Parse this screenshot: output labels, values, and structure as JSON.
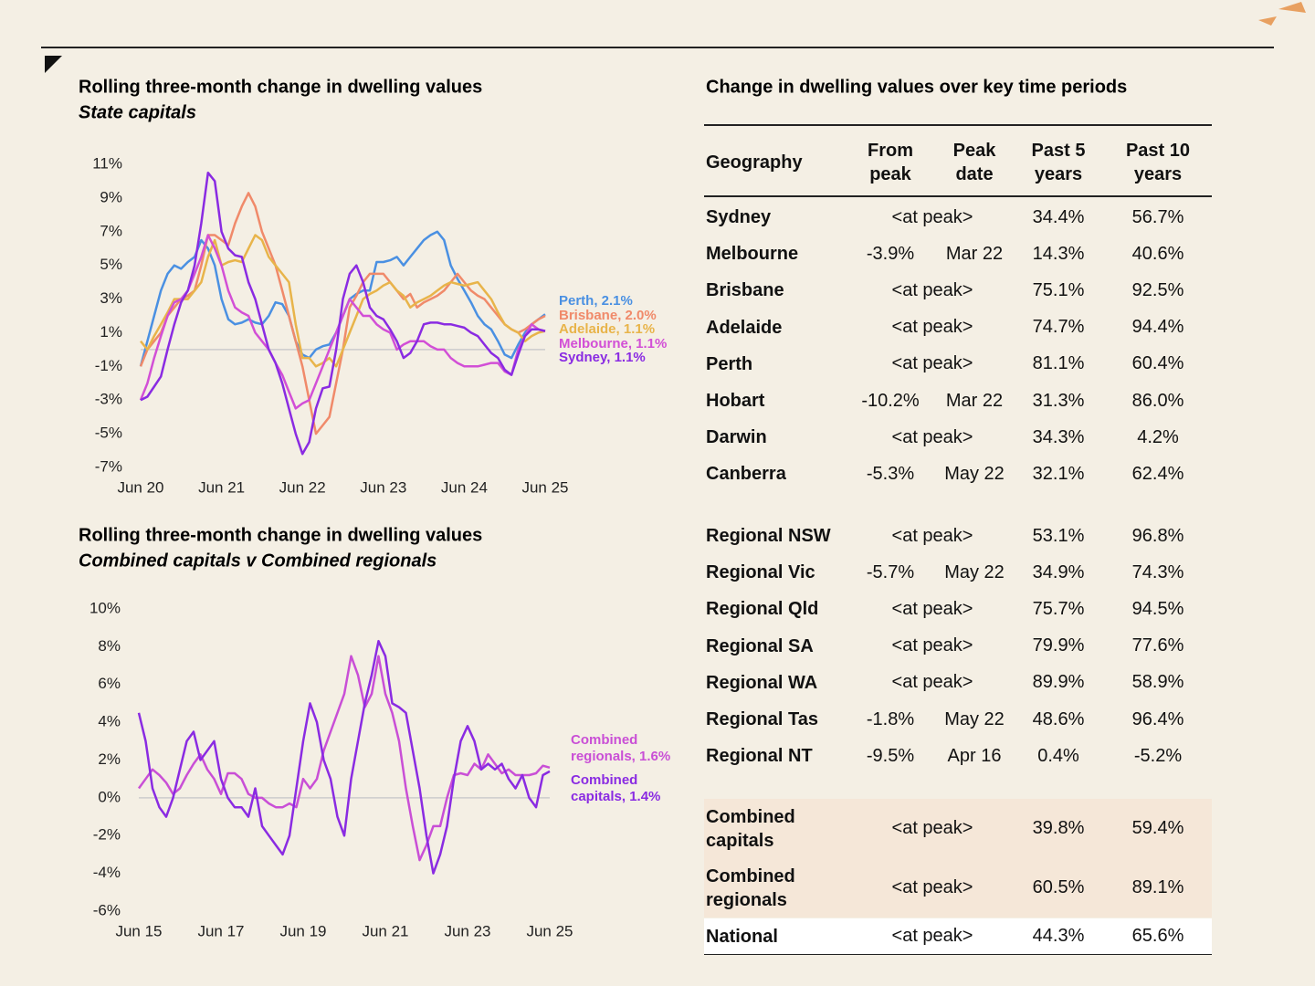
{
  "chart_data": [
    {
      "type": "line",
      "title": "Rolling three-month change in dwelling values",
      "subtitle": "State capitals",
      "categories": [
        "Jun 20",
        null,
        null,
        null,
        null,
        null,
        null,
        null,
        null,
        null,
        null,
        null,
        "Jun 21",
        null,
        null,
        null,
        null,
        null,
        null,
        null,
        null,
        null,
        null,
        null,
        "Jun 22",
        null,
        null,
        null,
        null,
        null,
        null,
        null,
        null,
        null,
        null,
        null,
        "Jun 23",
        null,
        null,
        null,
        null,
        null,
        null,
        null,
        null,
        null,
        null,
        null,
        "Jun 24",
        null,
        null,
        null,
        null,
        null,
        null,
        null,
        null,
        null,
        null,
        null,
        "Jun 25"
      ],
      "ylim": [
        -7,
        11
      ],
      "yticks": [
        {
          "value": 11,
          "label": "11%"
        },
        {
          "value": 9,
          "label": "9%"
        },
        {
          "value": 7,
          "label": "7%"
        },
        {
          "value": 5,
          "label": "5%"
        },
        {
          "value": 3,
          "label": "3%"
        },
        {
          "value": 1,
          "label": "1%"
        },
        {
          "value": -1,
          "label": "-1%"
        },
        {
          "value": -3,
          "label": "-3%"
        },
        {
          "value": -5,
          "label": "-5%"
        },
        {
          "value": -7,
          "label": "-7%"
        }
      ],
      "series": [
        {
          "name": "Perth, 2.1%",
          "color": "#4a90e2",
          "values": [
            -1,
            0.5,
            2,
            3.5,
            4.5,
            5,
            4.8,
            5.2,
            5.5,
            6.5,
            6,
            5,
            3,
            1.8,
            1.5,
            1.6,
            1.8,
            1.6,
            1.5,
            2,
            2.8,
            2.7,
            2,
            0.5,
            -0.3,
            -0.5,
            0,
            0.2,
            0.3,
            1,
            2,
            3,
            3.3,
            3.5,
            3.5,
            5.2,
            5.2,
            5.3,
            5.5,
            5,
            5.5,
            6,
            6.5,
            6.8,
            7,
            6.5,
            5,
            4.2,
            3.5,
            2.8,
            2,
            1.5,
            1.2,
            0.5,
            -0.3,
            -0.5,
            0.3,
            1,
            1.5,
            1.8,
            2.1
          ]
        },
        {
          "name": "Brisbane, 2.0%",
          "color": "#f08a6a",
          "values": [
            -1,
            0,
            0.5,
            1,
            2,
            2.5,
            3,
            3.2,
            3.5,
            5,
            6.8,
            6.8,
            6.5,
            6.2,
            7.5,
            8.5,
            9.3,
            8.5,
            7,
            6,
            5,
            3.5,
            2,
            0.5,
            -1,
            -3,
            -5,
            -4.5,
            -4,
            -2,
            0,
            2.5,
            3.2,
            4,
            4.5,
            4.5,
            4.5,
            4,
            3.5,
            3,
            3.3,
            2.5,
            2.8,
            3,
            3.2,
            3.5,
            4,
            4.5,
            4,
            3.5,
            3.2,
            3,
            2.5,
            2,
            1.5,
            1.2,
            1,
            1.2,
            1.5,
            1.8,
            2.0
          ]
        },
        {
          "name": "Adelaide, 1.1%",
          "color": "#e8b44a",
          "values": [
            0.5,
            0,
            0.8,
            1.5,
            2.2,
            3,
            3,
            3,
            3.5,
            4,
            5.5,
            6.5,
            5,
            5.2,
            5.3,
            5.2,
            6,
            6.8,
            6.5,
            5.5,
            5,
            4.5,
            4,
            1.5,
            -0.5,
            -0.5,
            -1,
            -0.8,
            -0.5,
            -1,
            0,
            1,
            2,
            3,
            3.3,
            3.5,
            3.8,
            4,
            3.5,
            3.2,
            2.5,
            2.8,
            3,
            3.2,
            3.5,
            3.8,
            4,
            3.9,
            3.8,
            3.9,
            4,
            3.5,
            3,
            2.2,
            1.5,
            1.2,
            1,
            0.5,
            0.8,
            1,
            1.1
          ]
        },
        {
          "name": "Melbourne, 1.1%",
          "color": "#d24fd6",
          "values": [
            -3,
            -2,
            -0.5,
            0.8,
            2,
            2.8,
            3,
            3.5,
            4.5,
            5.5,
            6.8,
            6,
            5,
            3.5,
            2.5,
            2.2,
            2,
            1,
            0.5,
            0,
            -0.8,
            -1.5,
            -2.5,
            -3.5,
            -3.2,
            -3,
            -2,
            -1,
            0,
            1,
            2,
            3,
            2.5,
            2,
            2,
            1.5,
            1.2,
            1,
            0,
            0.3,
            0.5,
            0.5,
            0.5,
            0.2,
            0,
            0,
            -0.5,
            -0.8,
            -1,
            -1,
            -1,
            -0.9,
            -0.8,
            -0.8,
            -1.3,
            -1.5,
            0,
            0.8,
            1.5,
            1.2,
            1.1
          ]
        },
        {
          "name": "Sydney, 1.1%",
          "color": "#8a2be2",
          "values": [
            -3,
            -2.8,
            -2.2,
            -1.6,
            0,
            1.5,
            2.8,
            3.5,
            5,
            7.5,
            10.5,
            10,
            7,
            6,
            5.6,
            5.5,
            4,
            3,
            1.5,
            0,
            -0.8,
            -2,
            -3.5,
            -5,
            -6.2,
            -5.5,
            -3.5,
            -2.3,
            -2.2,
            0,
            3,
            4.5,
            5,
            4,
            2.5,
            2,
            1.8,
            1.2,
            0.5,
            -0.5,
            -0.2,
            0.5,
            1.5,
            1.6,
            1.6,
            1.5,
            1.5,
            1.4,
            1.3,
            1.0,
            0.8,
            0.3,
            -0.2,
            -0.5,
            -1.2,
            -1.5,
            -0.3,
            0.8,
            1.2,
            1.2,
            1.1
          ]
        }
      ]
    },
    {
      "type": "line",
      "title": "Rolling three-month change in dwelling values",
      "subtitle": "Combined capitals v Combined regionals",
      "categories": [
        "Jun 15",
        null,
        null,
        null,
        null,
        null,
        null,
        null,
        null,
        null,
        null,
        null,
        "Jun 17",
        null,
        null,
        null,
        null,
        null,
        null,
        null,
        null,
        null,
        null,
        null,
        "Jun 19",
        null,
        null,
        null,
        null,
        null,
        null,
        null,
        null,
        null,
        null,
        null,
        "Jun 21",
        null,
        null,
        null,
        null,
        null,
        null,
        null,
        null,
        null,
        null,
        null,
        "Jun 23",
        null,
        null,
        null,
        null,
        null,
        null,
        null,
        null,
        null,
        null,
        null,
        "Jun 25"
      ],
      "ylim": [
        -6,
        10
      ],
      "yticks": [
        {
          "value": 10,
          "label": "10%"
        },
        {
          "value": 8,
          "label": "8%"
        },
        {
          "value": 6,
          "label": "6%"
        },
        {
          "value": 4,
          "label": "4%"
        },
        {
          "value": 2,
          "label": "2%"
        },
        {
          "value": 0,
          "label": "0%"
        },
        {
          "value": -2,
          "label": "-2%"
        },
        {
          "value": -4,
          "label": "-4%"
        },
        {
          "value": -6,
          "label": "-6%"
        }
      ],
      "series": [
        {
          "name": "Combined regionals, 1.6%",
          "color": "#c94fd6",
          "values": [
            0.5,
            1,
            1.5,
            1.2,
            0.8,
            0.2,
            0.5,
            1.2,
            1.8,
            2.3,
            1.5,
            1,
            0.2,
            1.3,
            1.3,
            1,
            0.2,
            0,
            0,
            -0.3,
            -0.5,
            -0.5,
            -0.3,
            -0.5,
            1,
            0.5,
            1,
            2.5,
            3.5,
            4.5,
            5.5,
            7.5,
            6.5,
            4.8,
            5.5,
            7.5,
            5.5,
            4.5,
            3,
            0.5,
            -1.5,
            -3.3,
            -2.5,
            -1.5,
            -1.5,
            0,
            1.2,
            1.3,
            1.2,
            1.8,
            1.5,
            2.3,
            1.8,
            1.3,
            1.5,
            1.2,
            1.2,
            1.2,
            1.3,
            1.7,
            1.6
          ]
        },
        {
          "name": "Combined capitals, 1.4%",
          "color": "#8a2be2",
          "values": [
            4.5,
            3,
            0.5,
            -0.5,
            -1,
            0,
            1.5,
            3,
            3.5,
            2,
            2.5,
            3,
            1,
            0,
            -0.5,
            -0.5,
            -1,
            0.5,
            -1.5,
            -2,
            -2.5,
            -3,
            -2,
            0.5,
            3,
            5,
            4,
            2,
            1,
            -1,
            -2,
            1,
            3,
            5,
            6.5,
            8.3,
            7.5,
            5,
            4.8,
            4.5,
            2.5,
            0.5,
            -2,
            -4,
            -3,
            -1.5,
            1,
            3,
            3.8,
            3,
            1.5,
            1.8,
            1.5,
            1.8,
            1,
            0.5,
            1.2,
            0,
            -0.5,
            1.2,
            1.4
          ]
        }
      ]
    }
  ],
  "table": {
    "title": "Change in dwelling values over key time periods",
    "header": [
      "Geography",
      "From peak",
      "Peak date",
      "Past 5 years",
      "Past 10 years"
    ],
    "groups": [
      {
        "rows": [
          [
            "Sydney",
            "<at peak>",
            "34.4%",
            "56.7%"
          ],
          [
            "Melbourne",
            "-3.9%",
            "Mar 22",
            "14.3%",
            "40.6%"
          ],
          [
            "Brisbane",
            "<at peak>",
            "75.1%",
            "92.5%"
          ],
          [
            "Adelaide",
            "<at peak>",
            "74.7%",
            "94.4%"
          ],
          [
            "Perth",
            "<at peak>",
            "81.1%",
            "60.4%"
          ],
          [
            "Hobart",
            "-10.2%",
            "Mar 22",
            "31.3%",
            "86.0%"
          ],
          [
            "Darwin",
            "<at peak>",
            "34.3%",
            "4.2%"
          ],
          [
            "Canberra",
            "-5.3%",
            "May 22",
            "32.1%",
            "62.4%"
          ]
        ]
      },
      {
        "rows": [
          [
            "Regional NSW",
            "<at peak>",
            "53.1%",
            "96.8%"
          ],
          [
            "Regional Vic",
            "-5.7%",
            "May 22",
            "34.9%",
            "74.3%"
          ],
          [
            "Regional Qld",
            "<at peak>",
            "75.7%",
            "94.5%"
          ],
          [
            "Regional SA",
            "<at peak>",
            "79.9%",
            "77.6%"
          ],
          [
            "Regional WA",
            "<at peak>",
            "89.9%",
            "58.9%"
          ],
          [
            "Regional Tas",
            "-1.8%",
            "May 22",
            "48.6%",
            "96.4%"
          ],
          [
            "Regional NT",
            "-9.5%",
            "Apr 16",
            "0.4%",
            "-5.2%"
          ]
        ]
      },
      {
        "rows": [
          [
            "Combined capitals",
            "<at peak>",
            "39.8%",
            "59.4%"
          ],
          [
            "Combined regionals",
            "<at peak>",
            "60.5%",
            "89.1%"
          ]
        ]
      },
      {
        "rows": [
          [
            "National",
            "<at peak>",
            "44.3%",
            "65.6%"
          ]
        ]
      }
    ]
  }
}
